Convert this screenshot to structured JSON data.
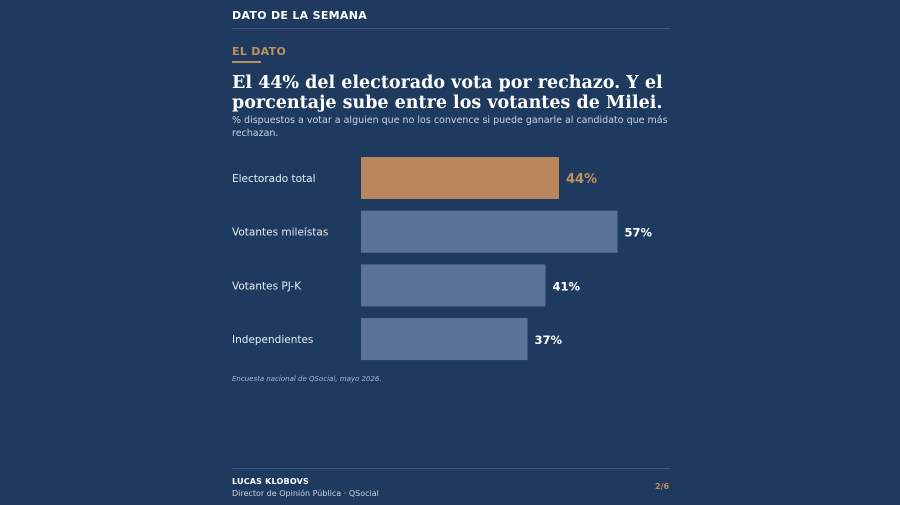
{
  "header": {
    "title": "DATO DE LA SEMANA"
  },
  "kicker": "EL DATO",
  "title": "El 44% del electorado vota por rechazo. Y el porcentaje sube entre los votantes de Milei.",
  "subtitle": "% dispuestos a votar a alguien que no los convence si puede ganarle al candidato que más rechazan.",
  "source": "Encuesta nacional de QSocial, mayo 2026.",
  "footer": {
    "author": "LUCAS KLOBOVS",
    "role": "Director de Opinión Pública · QSocial",
    "page": "2/6"
  },
  "colors": {
    "background": "#1f3a5f",
    "highlight": "#b8875c",
    "highlight_text": "#c0905e",
    "bar": "#5b7399"
  },
  "chart_data": {
    "type": "bar",
    "orientation": "horizontal",
    "categories": [
      "Electorado total",
      "Votantes mileístas",
      "Votantes PJ-K",
      "Independientes"
    ],
    "values": [
      44,
      57,
      41,
      37
    ],
    "value_labels": [
      "44%",
      "57%",
      "41%",
      "37%"
    ],
    "highlight_index": 0,
    "xlim": [
      0,
      100
    ],
    "grid": false
  }
}
